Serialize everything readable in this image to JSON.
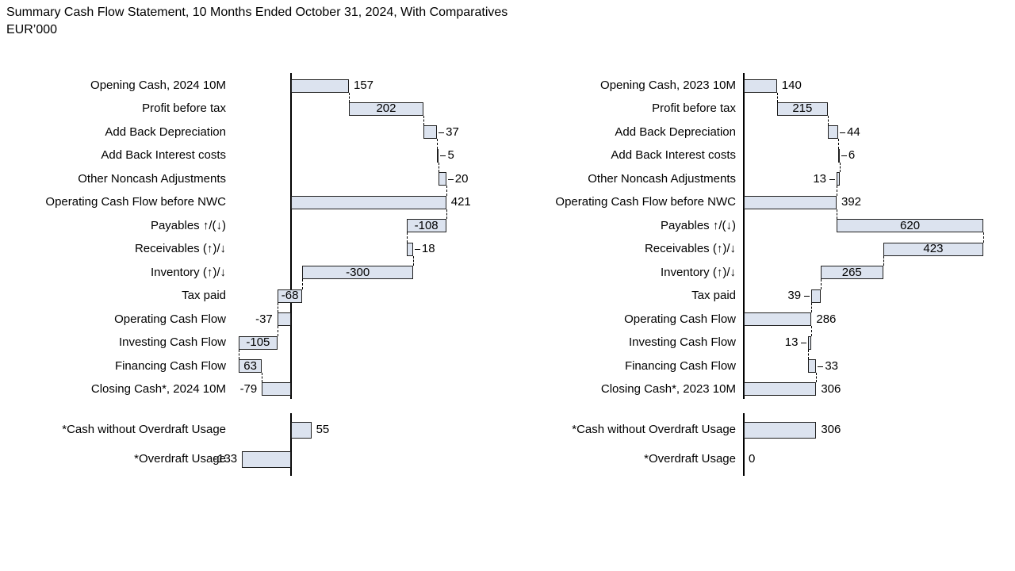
{
  "header": {
    "title": "Summary Cash Flow Statement, 10 Months Ended October 31, 2024, With Comparatives",
    "subtitle": "EUR’000"
  },
  "colors": {
    "background": "#ffffff",
    "bar_fill": "#dce3ef",
    "bar_border": "#1f1f1f",
    "axis_line": "#000000",
    "connector_line": "#000000",
    "text": "#000000"
  },
  "chart_data": [
    {
      "type": "bar",
      "subtype": "waterfall",
      "orientation": "horizontal",
      "period": "2024 10M",
      "grid": false,
      "axis_range": [
        -150,
        455
      ],
      "categories": [
        "Opening Cash, 2024 10M",
        "Profit before tax",
        "Add Back Depreciation",
        "Add Back Interest costs",
        "Other Noncash Adjustments",
        "Operating Cash Flow before NWC",
        "Payables ↑/(↓)",
        "Receivables (↑)/↓",
        "Inventory (↑)/↓",
        "Tax paid",
        "Operating Cash Flow",
        "Investing Cash Flow",
        "Financing Cash Flow",
        "Closing Cash*, 2024 10M"
      ],
      "values": [
        157,
        202,
        37,
        5,
        20,
        421,
        -108,
        18,
        -300,
        -68,
        -37,
        -105,
        63,
        -79
      ],
      "value_labels": [
        "157",
        "202",
        "37",
        "5",
        "20",
        "421",
        "-108",
        "18",
        "-300",
        "-68",
        "-37",
        "-105",
        "63",
        "-79"
      ],
      "bar_types": [
        "total",
        "delta",
        "delta",
        "delta",
        "delta",
        "total",
        "delta",
        "delta",
        "delta",
        "delta",
        "total",
        "delta",
        "delta",
        "total"
      ],
      "footer": {
        "categories": [
          "*Cash without Overdraft Usage",
          "*Overdraft Usage"
        ],
        "values": [
          55,
          -133
        ],
        "value_labels": [
          "55",
          "-133"
        ]
      }
    },
    {
      "type": "bar",
      "subtype": "waterfall",
      "orientation": "horizontal",
      "period": "2023 10M",
      "grid": false,
      "axis_range": [
        -20,
        1015
      ],
      "categories": [
        "Opening Cash, 2023 10M",
        "Profit before tax",
        "Add Back Depreciation",
        "Add Back Interest costs",
        "Other Noncash Adjustments",
        "Operating Cash Flow before NWC",
        "Payables ↑/(↓)",
        "Receivables (↑)/↓",
        "Inventory (↑)/↓",
        "Tax paid",
        "Operating Cash Flow",
        "Investing Cash Flow",
        "Financing Cash Flow",
        "Closing Cash*, 2023 10M"
      ],
      "values": [
        140,
        215,
        44,
        6,
        -13,
        392,
        620,
        -423,
        -265,
        -39,
        286,
        -13,
        33,
        306
      ],
      "value_labels": [
        "140",
        "215",
        "44",
        "6",
        "13",
        "392",
        "620",
        "423",
        "265",
        "39",
        "286",
        "13",
        "33",
        "306"
      ],
      "bar_types": [
        "total",
        "delta",
        "delta",
        "delta",
        "delta",
        "total",
        "delta",
        "delta",
        "delta",
        "delta",
        "total",
        "delta",
        "delta",
        "total"
      ],
      "footer": {
        "categories": [
          "*Cash without Overdraft Usage",
          "*Overdraft Usage"
        ],
        "values": [
          306,
          0
        ],
        "value_labels": [
          "306",
          "0"
        ]
      }
    }
  ]
}
